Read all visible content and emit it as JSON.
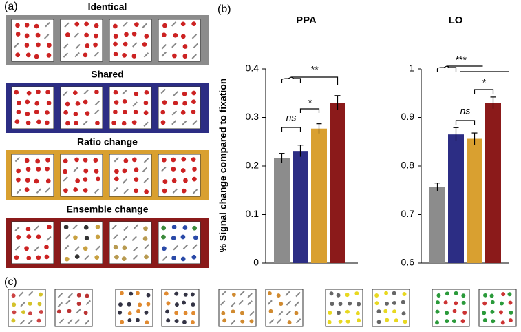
{
  "panels": {
    "a": {
      "label": "(a)",
      "conditions": [
        {
          "name": "Identical",
          "color": "#8c8c8c"
        },
        {
          "name": "Shared",
          "color": "#2c2d84"
        },
        {
          "name": "Ratio change",
          "color": "#d9a030"
        },
        {
          "name": "Ensemble change",
          "color": "#8b1a1a"
        }
      ]
    },
    "b": {
      "label": "(b)"
    },
    "c": {
      "label": "(c)"
    }
  },
  "chart_data": [
    {
      "type": "bar",
      "title": "PPA",
      "y_label": "% Signal change compared to fixation",
      "categories": [
        null,
        null,
        null,
        null
      ],
      "values": [
        0.216,
        0.231,
        0.277,
        0.33
      ],
      "errors": [
        0.01,
        0.012,
        0.01,
        0.015
      ],
      "colors": [
        "#8c8c8c",
        "#2c2d84",
        "#d9a030",
        "#8b1a1a"
      ],
      "ylim": [
        0,
        0.4
      ],
      "yticks": [
        0,
        0.1,
        0.2,
        0.3,
        0.4
      ],
      "annotations": [
        {
          "text": "ns"
        },
        {
          "text": "*"
        },
        {
          "text": "**"
        }
      ]
    },
    {
      "type": "bar",
      "title": "LO",
      "categories": [
        null,
        null,
        null,
        null
      ],
      "values": [
        0.757,
        0.865,
        0.856,
        0.93
      ],
      "errors": [
        0.008,
        0.014,
        0.012,
        0.012
      ],
      "colors": [
        "#8c8c8c",
        "#2c2d84",
        "#d9a030",
        "#8b1a1a"
      ],
      "ylim": [
        0.6,
        1
      ],
      "yticks": [
        0.6,
        0.7,
        0.8,
        0.9,
        1
      ],
      "annotations": [
        {
          "text": "***"
        },
        {
          "text": "ns"
        },
        {
          "text": "*"
        }
      ]
    }
  ]
}
